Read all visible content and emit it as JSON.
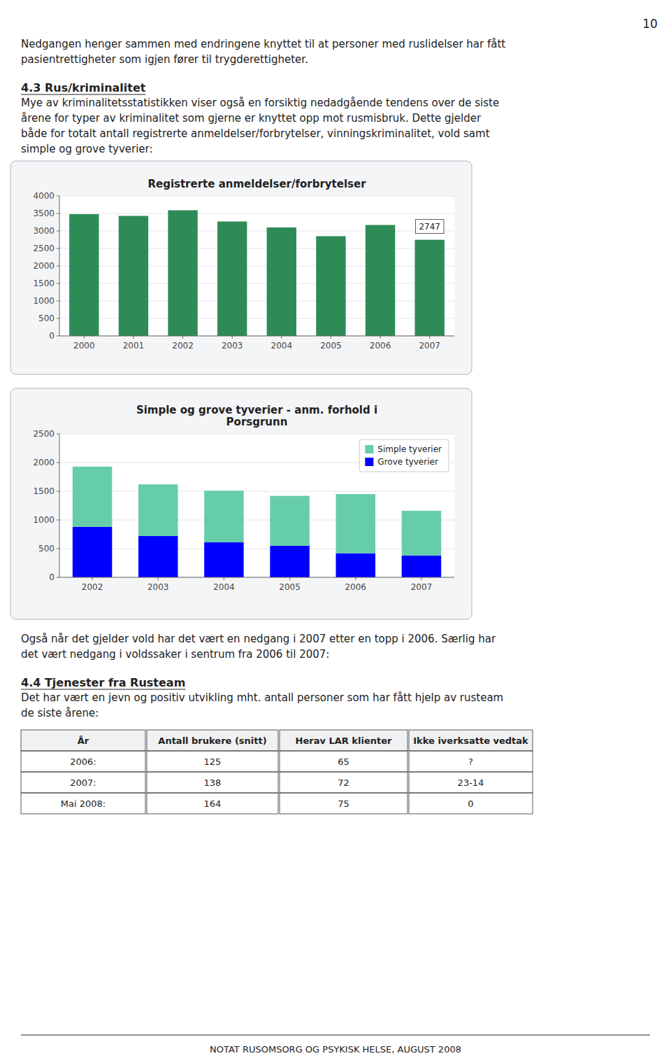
{
  "chart_data": [
    {
      "type": "bar",
      "title": "Registrerte anmeldelser/forbrytelser",
      "categories": [
        "2000",
        "2001",
        "2002",
        "2003",
        "2004",
        "2005",
        "2006",
        "2007"
      ],
      "values": [
        3480,
        3430,
        3590,
        3270,
        3100,
        2850,
        3170,
        2747
      ],
      "color": "#2e8b57",
      "ylim": [
        0,
        4000
      ],
      "yticks": [
        0,
        500,
        1000,
        1500,
        2000,
        2500,
        3000,
        3500,
        4000
      ],
      "grid": true,
      "annotations": [
        {
          "text": "2747"
        }
      ]
    },
    {
      "type": "bar",
      "title": "Simple og grove tyverier - anm. forhold i\nPorsgrunn",
      "categories": [
        "2002",
        "2003",
        "2004",
        "2005",
        "2006",
        "2007"
      ],
      "series": [
        {
          "name": "Grove tyverier",
          "color": "#0000ff",
          "values": [
            880,
            720,
            610,
            550,
            420,
            380
          ]
        },
        {
          "name": "Simple tyverier",
          "color": "#66cdaa",
          "values": [
            1050,
            900,
            900,
            870,
            1030,
            780
          ]
        }
      ],
      "stacked": true,
      "ylim": [
        0,
        2500
      ],
      "yticks": [
        0,
        500,
        1000,
        1500,
        2000,
        2500
      ],
      "grid": true,
      "legend": "upper right"
    }
  ],
  "page": {
    "page_number": "10",
    "intro_text_lines": [
      "Nedgangen henger sammen med endringene knyttet til at personer med ruslidelser har fått",
      "pasientrettigheter som igjen fører til trygderettigheter."
    ],
    "section_title": "4.3 Rus/kriminalitet",
    "section_body": [
      "Mye av kriminalitetsstatistikken viser også en forsiktig nedadgående tendens over de siste",
      "årene for typer av kriminalitet som gjerne er knyttet opp mot rusmisbruk. Dette gjelder",
      "både for totalt antall registrerte anmeldelser/forbrytelser, vinningskriminalitet, vold samt",
      "simple og grove tyverier:"
    ],
    "text2_lines": [
      "Også når det gjelder vold har det vært en nedgang i 2007 etter en topp i 2006. Særlig har",
      "det vært nedgang i voldssaker i sentrum fra 2006 til 2007:"
    ],
    "section2_title": "4.4 Tjenester fra Rusteam",
    "section2_body": [
      "Det har vært en jevn og positiv utvikling mht. antall personer som har fått hjelp av rusteam",
      "de siste årene:"
    ],
    "table": {
      "headers": [
        "År",
        "Antall brukere (snitt)",
        "Herav LAR klienter",
        "Ikke iverksatte vedtak"
      ],
      "rows": [
        [
          "2006:",
          "125",
          "65",
          "?"
        ],
        [
          "2007:",
          "138",
          "72",
          "23-14"
        ],
        [
          "Mai 2008:",
          "164",
          "75",
          "0"
        ]
      ]
    },
    "footer": "NOTAT RUSOMSORG OG PSYKISK HELSE, AUGUST 2008"
  }
}
